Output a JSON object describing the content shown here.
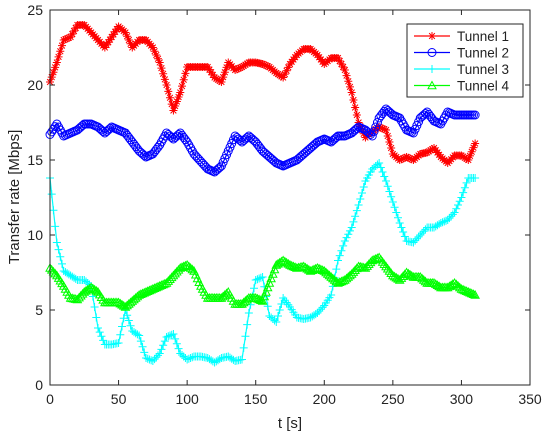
{
  "chart_data": {
    "type": "line",
    "title": "",
    "xlabel": "t [s]",
    "ylabel": "Transfer rate [Mbps]",
    "xlim": [
      0,
      350
    ],
    "ylim": [
      0,
      25
    ],
    "xticks": [
      0,
      50,
      100,
      150,
      200,
      250,
      300,
      350
    ],
    "yticks": [
      0,
      5,
      10,
      15,
      20,
      25
    ],
    "grid": false,
    "legend_position": "top-right",
    "series": [
      {
        "name": "Tunnel 1",
        "color": "#ff0000",
        "marker": "asterisk",
        "x": [
          0,
          5,
          10,
          15,
          20,
          25,
          30,
          35,
          40,
          45,
          50,
          55,
          60,
          65,
          70,
          75,
          80,
          85,
          90,
          95,
          100,
          105,
          110,
          115,
          120,
          125,
          130,
          135,
          140,
          145,
          150,
          155,
          160,
          165,
          170,
          175,
          180,
          185,
          190,
          195,
          200,
          205,
          210,
          215,
          220,
          225,
          230,
          235,
          240,
          245,
          250,
          255,
          260,
          265,
          270,
          275,
          280,
          285,
          290,
          295,
          300,
          305,
          310
        ],
        "y": [
          20.2,
          21.5,
          23,
          23.2,
          24,
          24,
          23.5,
          23,
          22.5,
          23.2,
          23.9,
          23.5,
          22.5,
          23,
          23,
          22.5,
          21.5,
          20,
          18.3,
          19.5,
          21.2,
          21.2,
          21.2,
          21.2,
          20.5,
          20.2,
          21.5,
          21,
          21.2,
          21.5,
          21.5,
          21.4,
          21.2,
          20.8,
          20.5,
          21.4,
          22,
          22.4,
          22.4,
          22,
          21.4,
          21.8,
          21.8,
          21,
          19.5,
          17.5,
          16.5,
          16.9,
          17.2,
          17,
          15.4,
          15,
          15.2,
          15,
          15.4,
          15.5,
          15.8,
          15.2,
          14.8,
          15.3,
          15.3,
          15,
          16.1
        ]
      },
      {
        "name": "Tunnel 2",
        "color": "#0000ff",
        "marker": "circle",
        "x": [
          0,
          5,
          10,
          15,
          20,
          25,
          30,
          35,
          40,
          45,
          50,
          55,
          60,
          65,
          70,
          75,
          80,
          85,
          90,
          95,
          100,
          105,
          110,
          115,
          120,
          125,
          130,
          135,
          140,
          145,
          150,
          155,
          160,
          165,
          170,
          175,
          180,
          185,
          190,
          195,
          200,
          205,
          210,
          215,
          220,
          225,
          230,
          235,
          240,
          245,
          250,
          255,
          260,
          265,
          270,
          275,
          280,
          285,
          290,
          295,
          300,
          305,
          310
        ],
        "y": [
          16.7,
          17.4,
          16.6,
          16.8,
          17,
          17.4,
          17.4,
          17.2,
          16.8,
          17.2,
          17,
          16.8,
          16.2,
          15.6,
          15.2,
          15.4,
          16,
          16.8,
          16.4,
          16.8,
          16.2,
          15.4,
          14.9,
          14.4,
          14.2,
          14.6,
          15.6,
          16.6,
          16.2,
          16.6,
          16.2,
          15.6,
          15.2,
          14.8,
          14.6,
          14.8,
          15,
          15.4,
          15.8,
          16.2,
          16.4,
          16.2,
          16.6,
          16.6,
          16.8,
          17.2,
          17,
          16.6,
          17.8,
          18.4,
          18,
          17.8,
          17,
          16.8,
          17.8,
          18.2,
          17.6,
          17.4,
          18.2,
          18,
          18,
          18,
          18
        ]
      },
      {
        "name": "Tunnel 3",
        "color": "#00ffff",
        "marker": "plus",
        "x": [
          0,
          5,
          10,
          15,
          20,
          25,
          30,
          35,
          40,
          45,
          50,
          55,
          60,
          65,
          70,
          75,
          80,
          85,
          90,
          95,
          100,
          105,
          110,
          115,
          120,
          125,
          130,
          135,
          140,
          145,
          150,
          155,
          160,
          165,
          170,
          175,
          180,
          185,
          190,
          195,
          200,
          205,
          210,
          215,
          220,
          225,
          230,
          235,
          240,
          245,
          250,
          255,
          260,
          265,
          270,
          275,
          280,
          285,
          290,
          295,
          300,
          305,
          310
        ],
        "y": [
          13.8,
          9.5,
          7.6,
          7.3,
          7,
          7,
          6.6,
          3.8,
          2.7,
          2.7,
          2.8,
          5,
          3.6,
          3.3,
          1.8,
          1.6,
          2.1,
          3.2,
          3.4,
          2.1,
          1.7,
          1.9,
          1.9,
          1.8,
          1.5,
          1.8,
          1.9,
          1.6,
          1.7,
          4.8,
          7,
          7.2,
          4.6,
          4.2,
          5.8,
          5.2,
          4.5,
          4.4,
          4.5,
          4.8,
          5.3,
          6,
          8.3,
          9.6,
          10.5,
          12,
          13.6,
          14.4,
          14.8,
          13.6,
          12.2,
          10.8,
          9.6,
          9.5,
          10,
          10.5,
          10.5,
          10.8,
          11,
          11.5,
          12.5,
          13.8,
          13.8
        ]
      },
      {
        "name": "Tunnel 4",
        "color": "#00ff00",
        "marker": "triangle",
        "x": [
          0,
          5,
          10,
          15,
          20,
          25,
          30,
          35,
          40,
          45,
          50,
          55,
          60,
          65,
          70,
          75,
          80,
          85,
          90,
          95,
          100,
          105,
          110,
          115,
          120,
          125,
          130,
          135,
          140,
          145,
          150,
          155,
          160,
          165,
          170,
          175,
          180,
          185,
          190,
          195,
          200,
          205,
          210,
          215,
          220,
          225,
          230,
          235,
          240,
          245,
          250,
          255,
          260,
          265,
          270,
          275,
          280,
          285,
          290,
          295,
          300,
          305,
          310
        ],
        "y": [
          7.8,
          7.3,
          6.6,
          5.8,
          5.7,
          6.2,
          6.5,
          6.2,
          5.5,
          5.5,
          5.5,
          5.2,
          5.6,
          6,
          6.2,
          6.4,
          6.6,
          6.8,
          7.3,
          7.8,
          8,
          7.6,
          6.6,
          5.8,
          5.8,
          5.8,
          6.2,
          5.4,
          5.4,
          5.8,
          5.8,
          5.6,
          6.8,
          8,
          8.3,
          8,
          7.8,
          7.9,
          7.6,
          7.8,
          7.6,
          7.2,
          6.8,
          7,
          7.4,
          7.9,
          7.8,
          8.3,
          8.5,
          7.9,
          7.3,
          7,
          7.5,
          7.2,
          7.2,
          6.8,
          6.8,
          6.5,
          6.5,
          6.8,
          6.4,
          6.2,
          6
        ]
      }
    ]
  }
}
